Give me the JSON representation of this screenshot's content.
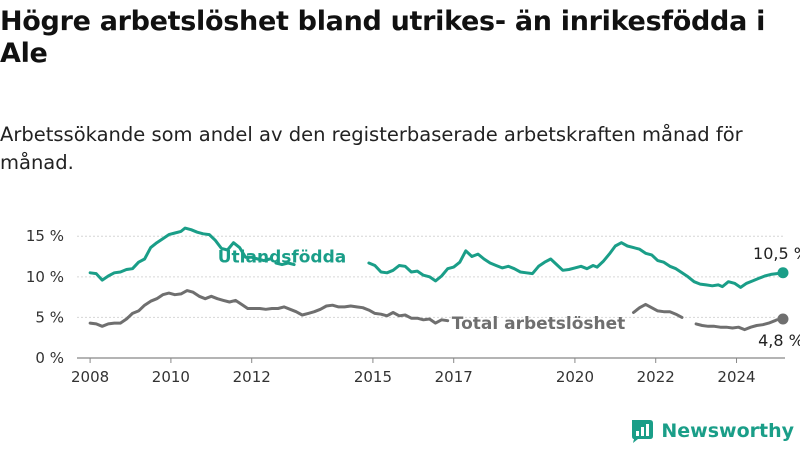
{
  "title": "Högre arbetslöshet bland utrikes- än inrikesfödda i Ale",
  "subtitle": "Arbetssökande som andel av den registerbaserade arbetskraften månad för månad.",
  "brand": {
    "name": "Newsworthy",
    "icon": "newsworthy-logo-icon",
    "color": "#1a9e88"
  },
  "chart_data": {
    "type": "line",
    "title": "Högre arbetslöshet bland utrikes- än inrikesfödda i Ale",
    "subtitle": "Arbetssökande som andel av den registerbaserade arbetskraften månad för månad.",
    "xlabel": "",
    "ylabel": "",
    "xlim": [
      2007.75,
      2025.2
    ],
    "ylim": [
      0,
      17
    ],
    "x_ticks": [
      2008,
      2010,
      2012,
      2015,
      2017,
      2020,
      2022,
      2024
    ],
    "x_tick_labels": [
      "2008",
      "2010",
      "2012",
      "2015",
      "2017",
      "2020",
      "2022",
      "2024"
    ],
    "y_ticks": [
      0,
      5,
      10,
      15
    ],
    "y_tick_labels": [
      "0 %",
      "5 %",
      "10 %",
      "15 %"
    ],
    "grid": "horizontal",
    "series": [
      {
        "name": "Utlandsfödda",
        "color": "#1a9e88",
        "end_label": "10,5 %",
        "points": [
          [
            2008.0,
            10.5
          ],
          [
            2008.15,
            10.4
          ],
          [
            2008.3,
            9.6
          ],
          [
            2008.45,
            10.1
          ],
          [
            2008.6,
            10.5
          ],
          [
            2008.75,
            10.6
          ],
          [
            2008.9,
            10.9
          ],
          [
            2009.05,
            11.0
          ],
          [
            2009.2,
            11.8
          ],
          [
            2009.35,
            12.2
          ],
          [
            2009.5,
            13.6
          ],
          [
            2009.65,
            14.2
          ],
          [
            2009.8,
            14.7
          ],
          [
            2009.95,
            15.2
          ],
          [
            2010.1,
            15.4
          ],
          [
            2010.25,
            15.6
          ],
          [
            2010.35,
            16.0
          ],
          [
            2010.5,
            15.8
          ],
          [
            2010.65,
            15.5
          ],
          [
            2010.8,
            15.3
          ],
          [
            2010.95,
            15.2
          ],
          [
            2011.1,
            14.5
          ],
          [
            2011.25,
            13.5
          ],
          [
            2011.4,
            13.3
          ],
          [
            2011.55,
            14.2
          ],
          [
            2011.7,
            13.6
          ],
          [
            2011.85,
            12.4
          ],
          [
            2012.0,
            12.4
          ],
          [
            2012.15,
            12.2
          ],
          [
            2012.3,
            12.0
          ],
          [
            2012.45,
            12.2
          ],
          null,
          [
            2012.6,
            11.7
          ],
          [
            2012.75,
            11.5
          ],
          [
            2012.9,
            11.7
          ],
          [
            2013.05,
            11.5
          ],
          null,
          [
            2014.9,
            11.7
          ],
          [
            2015.05,
            11.4
          ],
          [
            2015.2,
            10.6
          ],
          [
            2015.35,
            10.5
          ],
          [
            2015.5,
            10.8
          ],
          [
            2015.65,
            11.4
          ],
          [
            2015.8,
            11.3
          ],
          [
            2015.95,
            10.6
          ],
          [
            2016.1,
            10.7
          ],
          [
            2016.25,
            10.2
          ],
          [
            2016.4,
            10.0
          ],
          [
            2016.55,
            9.5
          ],
          [
            2016.7,
            10.1
          ],
          [
            2016.85,
            11.0
          ],
          [
            2017.0,
            11.2
          ],
          [
            2017.15,
            11.8
          ],
          [
            2017.3,
            13.2
          ],
          [
            2017.45,
            12.5
          ],
          [
            2017.6,
            12.8
          ],
          [
            2017.75,
            12.2
          ],
          [
            2017.9,
            11.7
          ],
          [
            2018.05,
            11.4
          ],
          [
            2018.2,
            11.1
          ],
          [
            2018.35,
            11.3
          ],
          [
            2018.5,
            11.0
          ],
          [
            2018.65,
            10.6
          ],
          [
            2018.8,
            10.5
          ],
          [
            2018.95,
            10.4
          ],
          [
            2019.1,
            11.3
          ],
          [
            2019.25,
            11.8
          ],
          [
            2019.4,
            12.2
          ],
          [
            2019.55,
            11.5
          ],
          [
            2019.7,
            10.8
          ],
          [
            2019.85,
            10.9
          ],
          [
            2020.0,
            11.1
          ],
          [
            2020.15,
            11.3
          ],
          [
            2020.3,
            11.0
          ],
          [
            2020.45,
            11.4
          ],
          [
            2020.55,
            11.2
          ],
          [
            2020.7,
            11.9
          ],
          [
            2020.85,
            12.8
          ],
          [
            2021.0,
            13.8
          ],
          [
            2021.15,
            14.2
          ],
          [
            2021.3,
            13.8
          ],
          [
            2021.45,
            13.6
          ],
          [
            2021.6,
            13.4
          ],
          [
            2021.75,
            12.9
          ],
          [
            2021.9,
            12.7
          ],
          [
            2022.05,
            12.0
          ],
          [
            2022.2,
            11.8
          ],
          [
            2022.35,
            11.3
          ],
          [
            2022.5,
            11.0
          ],
          [
            2022.65,
            10.5
          ],
          [
            2022.8,
            10.0
          ],
          [
            2022.95,
            9.4
          ],
          [
            2023.1,
            9.1
          ],
          [
            2023.25,
            9.0
          ],
          [
            2023.4,
            8.9
          ],
          [
            2023.55,
            9.0
          ],
          [
            2023.65,
            8.8
          ],
          [
            2023.8,
            9.4
          ],
          [
            2023.95,
            9.2
          ],
          [
            2024.1,
            8.7
          ],
          [
            2024.25,
            9.2
          ],
          [
            2024.4,
            9.5
          ],
          [
            2024.55,
            9.8
          ],
          [
            2024.7,
            10.1
          ],
          [
            2024.85,
            10.3
          ],
          [
            2025.0,
            10.4
          ],
          [
            2025.15,
            10.5
          ]
        ]
      },
      {
        "name": "Total arbetslöshet",
        "color": "#6f6f6f",
        "end_label": "4,8 %",
        "points": [
          [
            2008.0,
            4.3
          ],
          [
            2008.15,
            4.2
          ],
          [
            2008.3,
            3.9
          ],
          [
            2008.45,
            4.2
          ],
          [
            2008.6,
            4.3
          ],
          [
            2008.75,
            4.3
          ],
          [
            2008.9,
            4.8
          ],
          [
            2009.05,
            5.5
          ],
          [
            2009.2,
            5.8
          ],
          [
            2009.35,
            6.5
          ],
          [
            2009.5,
            7.0
          ],
          [
            2009.65,
            7.3
          ],
          [
            2009.8,
            7.8
          ],
          [
            2009.95,
            8.0
          ],
          [
            2010.1,
            7.8
          ],
          [
            2010.25,
            7.9
          ],
          [
            2010.4,
            8.3
          ],
          [
            2010.55,
            8.1
          ],
          [
            2010.7,
            7.6
          ],
          [
            2010.85,
            7.3
          ],
          [
            2011.0,
            7.6
          ],
          [
            2011.15,
            7.3
          ],
          [
            2011.3,
            7.1
          ],
          [
            2011.45,
            6.9
          ],
          [
            2011.6,
            7.1
          ],
          [
            2011.75,
            6.6
          ],
          [
            2011.9,
            6.1
          ],
          [
            2012.05,
            6.1
          ],
          [
            2012.2,
            6.1
          ],
          [
            2012.35,
            6.0
          ],
          [
            2012.5,
            6.1
          ],
          [
            2012.65,
            6.1
          ],
          [
            2012.8,
            6.3
          ],
          [
            2012.95,
            6.0
          ],
          [
            2013.1,
            5.7
          ],
          [
            2013.25,
            5.3
          ],
          [
            2013.4,
            5.5
          ],
          [
            2013.55,
            5.7
          ],
          [
            2013.7,
            6.0
          ],
          [
            2013.85,
            6.4
          ],
          [
            2014.0,
            6.5
          ],
          [
            2014.15,
            6.3
          ],
          [
            2014.3,
            6.3
          ],
          [
            2014.45,
            6.4
          ],
          [
            2014.6,
            6.3
          ],
          [
            2014.75,
            6.2
          ],
          [
            2014.9,
            5.9
          ],
          [
            2015.05,
            5.5
          ],
          [
            2015.2,
            5.4
          ],
          [
            2015.35,
            5.2
          ],
          [
            2015.5,
            5.6
          ],
          [
            2015.65,
            5.2
          ],
          [
            2015.8,
            5.3
          ],
          [
            2015.95,
            4.9
          ],
          [
            2016.1,
            4.9
          ],
          [
            2016.25,
            4.7
          ],
          [
            2016.4,
            4.8
          ],
          [
            2016.55,
            4.3
          ],
          [
            2016.7,
            4.7
          ],
          [
            2016.85,
            4.6
          ],
          null,
          [
            2021.45,
            5.6
          ],
          [
            2021.6,
            6.2
          ],
          [
            2021.75,
            6.6
          ],
          [
            2021.9,
            6.2
          ],
          [
            2022.05,
            5.8
          ],
          [
            2022.2,
            5.7
          ],
          [
            2022.35,
            5.7
          ],
          [
            2022.5,
            5.4
          ],
          [
            2022.65,
            5.0
          ],
          null,
          [
            2023.0,
            4.2
          ],
          [
            2023.15,
            4.0
          ],
          [
            2023.3,
            3.9
          ],
          [
            2023.45,
            3.9
          ],
          [
            2023.6,
            3.8
          ],
          [
            2023.75,
            3.8
          ],
          [
            2023.9,
            3.7
          ],
          [
            2024.05,
            3.8
          ],
          [
            2024.2,
            3.5
          ],
          [
            2024.35,
            3.8
          ],
          [
            2024.5,
            4.0
          ],
          [
            2024.65,
            4.1
          ],
          [
            2024.8,
            4.3
          ],
          [
            2024.95,
            4.6
          ],
          [
            2025.0,
            4.7
          ],
          [
            2025.15,
            4.8
          ]
        ]
      }
    ]
  }
}
